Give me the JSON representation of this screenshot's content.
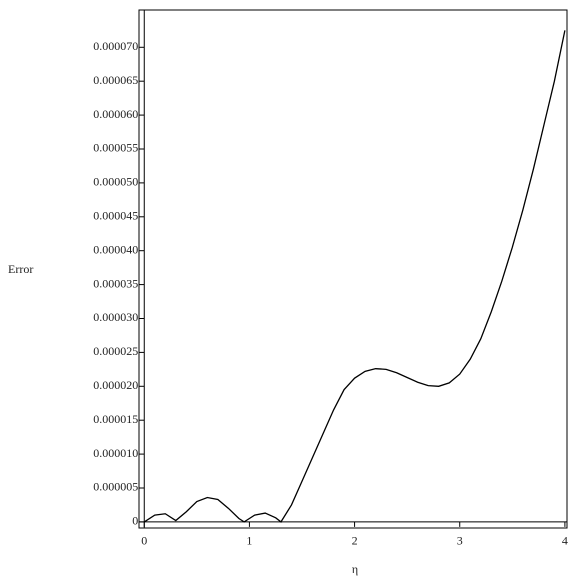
{
  "chart_data": {
    "type": "line",
    "x_label": "η",
    "y_label": "Error",
    "x": [
      0,
      0.1,
      0.2,
      0.3,
      0.4,
      0.5,
      0.6,
      0.7,
      0.8,
      0.9,
      0.95,
      1.05,
      1.15,
      1.25,
      1.3,
      1.4,
      1.5,
      1.6,
      1.7,
      1.8,
      1.9,
      2.0,
      2.1,
      2.2,
      2.3,
      2.4,
      2.5,
      2.6,
      2.7,
      2.8,
      2.9,
      3.0,
      3.1,
      3.2,
      3.3,
      3.4,
      3.5,
      3.6,
      3.7,
      3.8,
      3.9,
      4.0
    ],
    "series": [
      {
        "color": "#000000",
        "values": [
          0,
          1e-06,
          1.2e-06,
          2e-07,
          1.5e-06,
          3e-06,
          3.6e-06,
          3.3e-06,
          2e-06,
          5e-07,
          0,
          1e-06,
          1.3e-06,
          6e-07,
          0,
          2.5e-06,
          6e-06,
          9.5e-06,
          1.3e-05,
          1.65e-05,
          1.95e-05,
          2.12e-05,
          2.22e-05,
          2.26e-05,
          2.25e-05,
          2.2e-05,
          2.13e-05,
          2.06e-05,
          2.01e-05,
          2e-05,
          2.05e-05,
          2.18e-05,
          2.4e-05,
          2.7e-05,
          3.1e-05,
          3.55e-05,
          4.05e-05,
          4.6e-05,
          5.2e-05,
          5.85e-05,
          6.5e-05,
          7.25e-05
        ]
      }
    ],
    "xlim": [
      -0.05,
      4.02
    ],
    "ylim": [
      -9e-07,
      7.55e-05
    ],
    "xticks": [
      0,
      1,
      2,
      3,
      4
    ],
    "yticks": [
      0,
      {
        "value": 5e-06,
        "label": "0.000005"
      },
      {
        "value": 1e-05,
        "label": "0.000010"
      },
      {
        "value": 1.5e-05,
        "label": "0.000015"
      },
      {
        "value": 2e-05,
        "label": "0.000020"
      },
      {
        "value": 2.5e-05,
        "label": "0.000025"
      },
      {
        "value": 3e-05,
        "label": "0.000030"
      },
      {
        "value": 3.5e-05,
        "label": "0.000035"
      },
      {
        "value": 4e-05,
        "label": "0.000040"
      },
      {
        "value": 4.5e-05,
        "label": "0.000045"
      },
      {
        "value": 5e-05,
        "label": "0.000050"
      },
      {
        "value": 5.5e-05,
        "label": "0.000055"
      },
      {
        "value": 6e-05,
        "label": "0.000060"
      },
      {
        "value": 6.5e-05,
        "label": "0.000065"
      },
      {
        "value": 7e-05,
        "label": "0.000070"
      }
    ]
  }
}
